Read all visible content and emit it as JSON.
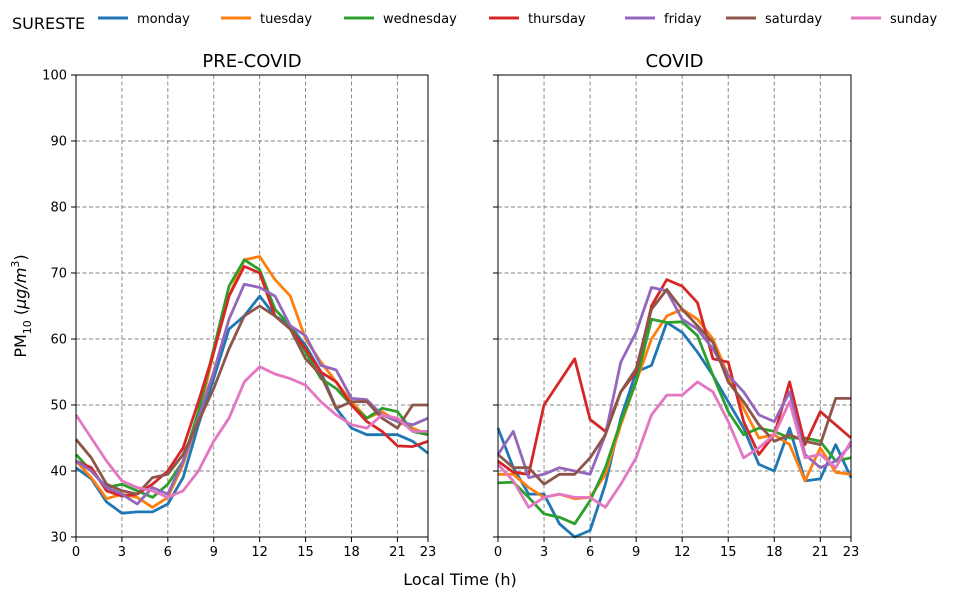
{
  "chart_data": {
    "type": "line",
    "suptitle": "SURESTE",
    "xlabel": "Local Time (h)",
    "ylabel_base": "PM",
    "ylabel_sub": "10",
    "ylabel_unit_open": "  (",
    "ylabel_unit_mu": "μg",
    "ylabel_unit_slash": "/",
    "ylabel_unit_m": "m",
    "ylabel_unit_sup": "3",
    "ylabel_unit_close": ")",
    "xlim": [
      0,
      23
    ],
    "ylim": [
      30,
      100
    ],
    "xticks": [
      0,
      3,
      6,
      9,
      12,
      15,
      18,
      21,
      23
    ],
    "yticks": [
      30,
      40,
      50,
      60,
      70,
      80,
      90,
      100
    ],
    "grid": true,
    "legend_position": "top",
    "x": [
      0,
      1,
      2,
      3,
      4,
      5,
      6,
      7,
      8,
      9,
      10,
      11,
      12,
      13,
      14,
      15,
      16,
      17,
      18,
      19,
      20,
      21,
      22,
      23
    ],
    "series_colors": {
      "monday": "#1f77b4",
      "tuesday": "#ff7f0e",
      "wednesday": "#2ca02c",
      "thursday": "#d62728",
      "friday": "#9467bd",
      "saturday": "#8c564b",
      "sunday": "#e377c2"
    },
    "legend": [
      "monday",
      "tuesday",
      "wednesday",
      "thursday",
      "friday",
      "saturday",
      "sunday"
    ],
    "panels": [
      {
        "title": "PRE-COVID",
        "series": [
          {
            "name": "monday",
            "values": [
              40.5,
              38.8,
              35.3,
              33.6,
              33.8,
              33.8,
              35.0,
              39.0,
              47.0,
              54.0,
              61.5,
              63.5,
              66.5,
              63.5,
              62.0,
              59.0,
              55.0,
              49.5,
              46.5,
              45.5,
              45.5,
              45.5,
              44.5,
              42.7
            ]
          },
          {
            "name": "tuesday",
            "values": [
              41.5,
              39.0,
              35.8,
              36.5,
              36.0,
              34.5,
              36.0,
              41.0,
              48.0,
              58.0,
              66.5,
              72.0,
              72.5,
              69.0,
              66.5,
              60.0,
              56.5,
              53.5,
              50.5,
              48.0,
              49.0,
              47.5,
              46.5,
              45.5
            ]
          },
          {
            "name": "wednesday",
            "values": [
              42.5,
              40.0,
              37.5,
              38.0,
              37.0,
              36.0,
              38.0,
              41.5,
              49.0,
              58.5,
              68.0,
              72.0,
              70.5,
              64.5,
              62.0,
              58.0,
              54.0,
              52.5,
              50.0,
              48.0,
              49.5,
              49.0,
              46.0,
              45.5
            ]
          },
          {
            "name": "thursday",
            "values": [
              41.5,
              40.5,
              37.0,
              36.2,
              36.5,
              38.0,
              40.0,
              43.5,
              50.5,
              58.0,
              66.5,
              71.0,
              70.0,
              63.5,
              61.5,
              58.5,
              55.0,
              53.5,
              50.0,
              47.5,
              46.0,
              43.8,
              43.7,
              44.5
            ]
          },
          {
            "name": "friday",
            "values": [
              41.5,
              40.0,
              37.5,
              36.5,
              35.0,
              37.5,
              36.5,
              41.5,
              48.0,
              55.0,
              63.0,
              68.3,
              67.8,
              66.5,
              62.0,
              60.5,
              56.0,
              55.3,
              51.0,
              50.8,
              48.5,
              47.5,
              47.0,
              48.0
            ]
          },
          {
            "name": "saturday",
            "values": [
              44.8,
              42.0,
              38.0,
              37.0,
              36.5,
              39.0,
              39.5,
              42.5,
              47.5,
              52.5,
              58.5,
              63.5,
              65.0,
              63.5,
              61.5,
              57.0,
              54.5,
              49.5,
              50.5,
              50.5,
              48.0,
              46.5,
              50.0,
              50.0
            ]
          },
          {
            "name": "sunday",
            "values": [
              48.5,
              45.0,
              41.5,
              38.5,
              37.5,
              37.0,
              36.0,
              37.0,
              40.0,
              44.5,
              48.0,
              53.5,
              55.8,
              54.7,
              54.0,
              53.0,
              50.5,
              48.5,
              47.0,
              46.5,
              48.5,
              48.0,
              46.0,
              46.0
            ]
          }
        ]
      },
      {
        "title": "COVID",
        "series": [
          {
            "name": "monday",
            "values": [
              46.5,
              40.5,
              36.5,
              36.5,
              32.0,
              30.0,
              31.0,
              38.0,
              48.0,
              55.0,
              56.0,
              62.5,
              61.0,
              58.0,
              54.5,
              50.5,
              46.5,
              41.0,
              40.0,
              46.5,
              38.5,
              38.8,
              44.0,
              39.0
            ]
          },
          {
            "name": "tuesday",
            "values": [
              39.5,
              39.5,
              37.5,
              36.0,
              36.5,
              35.8,
              36.0,
              39.5,
              47.0,
              53.5,
              60.0,
              63.5,
              64.5,
              63.0,
              60.0,
              54.5,
              49.5,
              45.0,
              45.5,
              44.0,
              38.5,
              43.5,
              39.8,
              39.5
            ]
          },
          {
            "name": "wednesday",
            "values": [
              38.2,
              38.3,
              36.0,
              33.5,
              33.0,
              32.0,
              35.5,
              40.5,
              47.5,
              53.5,
              63.0,
              62.5,
              62.6,
              60.5,
              54.5,
              49.0,
              45.5,
              46.5,
              46.0,
              45.0,
              45.0,
              44.5,
              41.5,
              42.0
            ]
          },
          {
            "name": "thursday",
            "values": [
              41.5,
              39.8,
              39.5,
              50.0,
              53.5,
              57.0,
              47.8,
              46.0,
              52.0,
              55.0,
              65.0,
              69.0,
              68.0,
              65.5,
              57.0,
              56.5,
              47.5,
              42.5,
              45.5,
              53.5,
              44.0,
              49.0,
              47.0,
              45.0
            ]
          },
          {
            "name": "friday",
            "values": [
              42.5,
              46.0,
              39.0,
              39.5,
              40.5,
              40.0,
              39.5,
              45.5,
              56.5,
              61.0,
              67.8,
              67.3,
              63.0,
              61.5,
              58.5,
              54.5,
              52.0,
              48.5,
              47.5,
              52.0,
              42.5,
              40.5,
              41.5,
              44.0
            ]
          },
          {
            "name": "saturday",
            "values": [
              42.5,
              40.5,
              40.5,
              38.0,
              39.5,
              39.5,
              42.0,
              45.5,
              52.0,
              55.5,
              64.5,
              67.5,
              64.5,
              62.0,
              59.5,
              53.5,
              50.5,
              47.0,
              44.5,
              45.5,
              44.5,
              44.0,
              51.0,
              51.0
            ]
          },
          {
            "name": "sunday",
            "values": [
              41.0,
              38.5,
              34.5,
              36.0,
              36.5,
              36.0,
              36.0,
              34.5,
              38.0,
              42.0,
              48.5,
              51.5,
              51.5,
              53.5,
              52.0,
              47.5,
              42.0,
              43.5,
              45.5,
              50.5,
              42.0,
              42.5,
              40.5,
              44.5
            ]
          }
        ]
      }
    ]
  }
}
